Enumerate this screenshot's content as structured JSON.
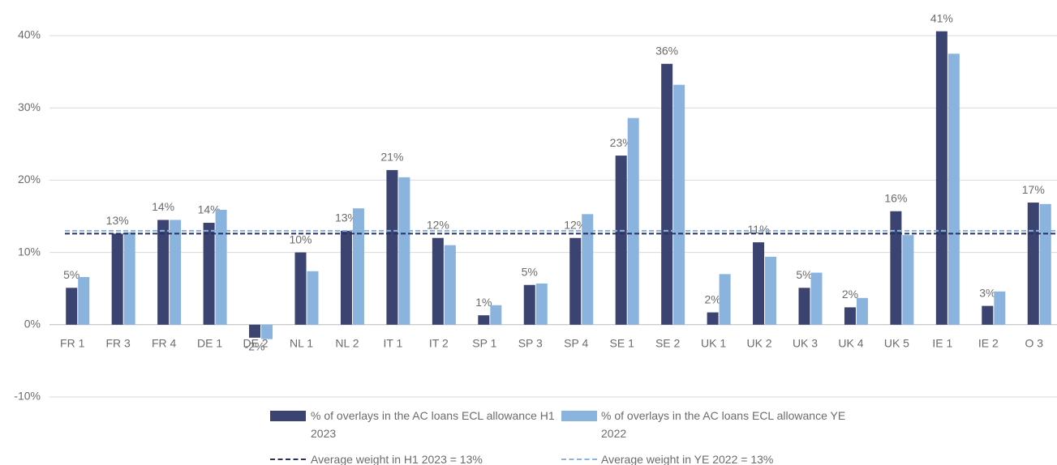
{
  "chart_data": {
    "type": "bar",
    "categories": [
      "FR 1",
      "FR 3",
      "FR 4",
      "DE 1",
      "DE 2",
      "NL 1",
      "NL 2",
      "IT 1",
      "IT 2",
      "SP 1",
      "SP 3",
      "SP 4",
      "SE 1",
      "SE 2",
      "UK 1",
      "UK 2",
      "UK 3",
      "UK 4",
      "UK 5",
      "IE 1",
      "IE 2",
      "O 3"
    ],
    "series": [
      {
        "name": "% of overlays in the AC loans ECL allowance H1 2023",
        "color": "#3b4371",
        "values": [
          5.1,
          12.6,
          14.5,
          14.1,
          -1.8,
          10,
          13,
          21.4,
          12,
          1.3,
          5.5,
          12,
          23.4,
          36.1,
          1.7,
          11.4,
          5.1,
          2.4,
          15.7,
          40.6,
          2.6,
          16.9
        ],
        "value_labels": [
          "5%",
          "13%",
          "14%",
          "14%",
          "-2%",
          "10%",
          "13%",
          "21%",
          "12%",
          "1%",
          "5%",
          "12%",
          "23%",
          "36%",
          "2%",
          "11%",
          "5%",
          "2%",
          "16%",
          "41%",
          "3%",
          "17%"
        ]
      },
      {
        "name": "% of overlays in the AC loans ECL allowance YE 2022",
        "color": "#8ab4de",
        "values": [
          6.6,
          12.8,
          14.5,
          15.9,
          -2.0,
          7.4,
          16.1,
          20.4,
          11,
          2.7,
          5.7,
          15.3,
          28.6,
          33.2,
          7.0,
          9.4,
          7.2,
          3.7,
          12.4,
          37.5,
          4.6,
          16.7
        ]
      }
    ],
    "reference_lines": [
      {
        "name": "Average weight in H1 2023 = 13%",
        "color": "#2a3160",
        "value": 12.6
      },
      {
        "name": "Average weight in YE 2022 = 13%",
        "color": "#8ab4de",
        "value": 13.0
      }
    ],
    "ylim": [
      -10,
      45
    ],
    "yticks": [
      {
        "value": -10,
        "label": "-10%"
      },
      {
        "value": 0,
        "label": "0%"
      },
      {
        "value": 10,
        "label": "10%"
      },
      {
        "value": 20,
        "label": "20%"
      },
      {
        "value": 30,
        "label": "30%"
      },
      {
        "value": 40,
        "label": "40%"
      }
    ],
    "grid": true
  }
}
